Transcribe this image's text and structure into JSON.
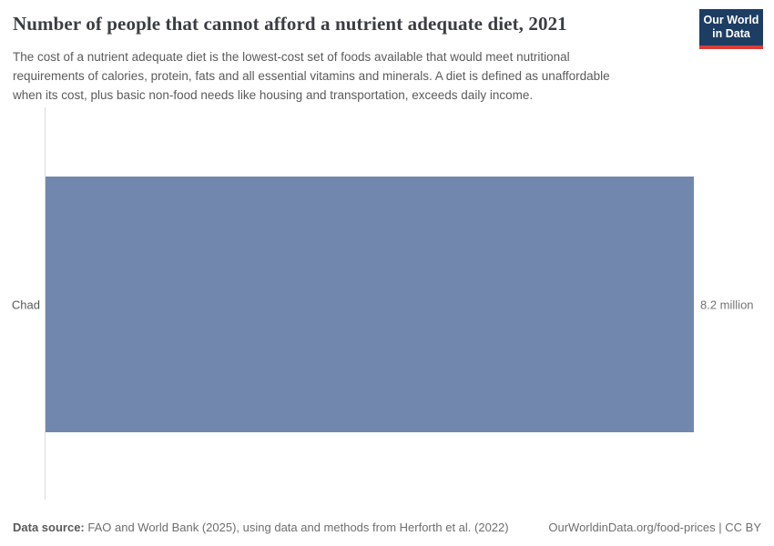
{
  "header": {
    "title": "Number of people that cannot afford a nutrient adequate diet, 2021",
    "subtitle_lines": [
      "The cost of a nutrient adequate diet is the lowest-cost set of foods available that would meet nutritional",
      "requirements of calories, protein, fats and all essential vitamins and minerals. A diet is defined as unaffordable",
      "when its cost, plus basic non-food needs like housing and transportation, exceeds daily income."
    ],
    "logo": {
      "line1": "Our World",
      "line2": "in Data",
      "bg_color": "#1d3d63",
      "accent_color": "#d93d38"
    }
  },
  "chart_data": {
    "type": "bar",
    "orientation": "horizontal",
    "title": "Number of people that cannot afford a nutrient adequate diet, 2021",
    "categories": [
      "Chad"
    ],
    "values": [
      8200000
    ],
    "value_labels": [
      "8.2 million"
    ],
    "xlabel": "",
    "ylabel": "",
    "xlim": [
      0,
      8200000
    ],
    "grid": false,
    "legend": "none",
    "bar_color": "#7287ae",
    "axis_color": "#dcdcdc"
  },
  "footer": {
    "datasource_label": "Data source:",
    "datasource_text": " FAO and World Bank (2025), using data and methods from Herforth et al. (2022)",
    "link_text": "OurWorldinData.org/food-prices | CC BY"
  }
}
